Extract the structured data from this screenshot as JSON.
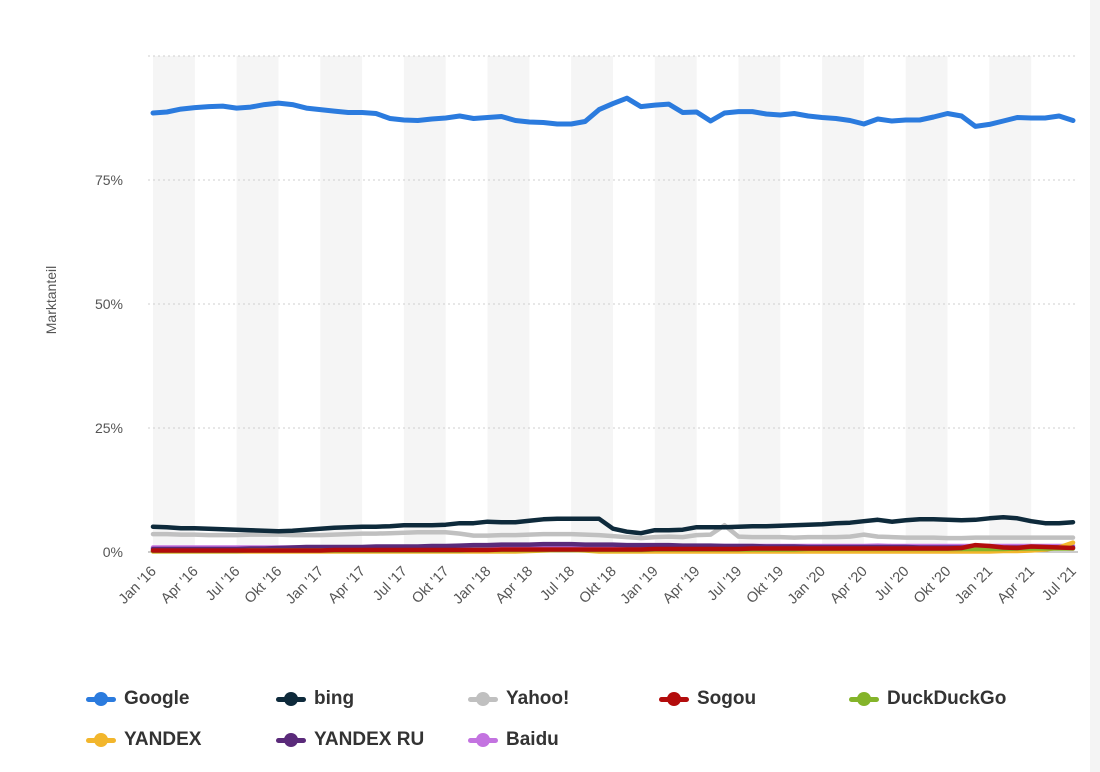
{
  "chart_data": {
    "type": "line",
    "title": "",
    "xlabel": "",
    "ylabel": "Marktanteil",
    "ylim": [
      0,
      100
    ],
    "yticks": [
      "0%",
      "25%",
      "50%",
      "75%"
    ],
    "ytick_values": [
      0,
      25,
      50,
      75
    ],
    "grid": true,
    "legend_position": "bottom",
    "x_tick_labels": [
      "Jan '16",
      "Apr '16",
      "Jul '16",
      "Okt '16",
      "Jan '17",
      "Apr '17",
      "Jul '17",
      "Okt '17",
      "Jan '18",
      "Apr '18",
      "Jul '18",
      "Okt '18",
      "Jan '19",
      "Apr '19",
      "Jul '19",
      "Okt '19",
      "Jan '20",
      "Apr '20",
      "Jul '20",
      "Okt '20",
      "Jan '21",
      "Apr '21",
      "Jul '21"
    ],
    "x": [
      "Jan '16",
      "Feb '16",
      "Mär '16",
      "Apr '16",
      "Mai '16",
      "Jun '16",
      "Jul '16",
      "Aug '16",
      "Sep '16",
      "Okt '16",
      "Nov '16",
      "Dez '16",
      "Jan '17",
      "Feb '17",
      "Mär '17",
      "Apr '17",
      "Mai '17",
      "Jun '17",
      "Jul '17",
      "Aug '17",
      "Sep '17",
      "Okt '17",
      "Nov '17",
      "Dez '17",
      "Jan '18",
      "Feb '18",
      "Mär '18",
      "Apr '18",
      "Mai '18",
      "Jun '18",
      "Jul '18",
      "Aug '18",
      "Sep '18",
      "Okt '18",
      "Nov '18",
      "Dez '18",
      "Jan '19",
      "Feb '19",
      "Mär '19",
      "Apr '19",
      "Mai '19",
      "Jun '19",
      "Jul '19",
      "Aug '19",
      "Sep '19",
      "Okt '19",
      "Nov '19",
      "Dez '19",
      "Jan '20",
      "Feb '20",
      "Mär '20",
      "Apr '20",
      "Mai '20",
      "Jun '20",
      "Jul '20",
      "Aug '20",
      "Sep '20",
      "Okt '20",
      "Nov '20",
      "Dez '20",
      "Jan '21",
      "Feb '21",
      "Mär '21",
      "Apr '21",
      "Mai '21",
      "Jun '21",
      "Jul '21"
    ],
    "series": [
      {
        "name": "Google",
        "color": "#2b7bde",
        "values": [
          88.5,
          88.7,
          89.3,
          89.6,
          89.8,
          89.9,
          89.5,
          89.7,
          90.2,
          90.5,
          90.2,
          89.5,
          89.2,
          88.9,
          88.6,
          88.6,
          88.4,
          87.4,
          87.1,
          87.0,
          87.3,
          87.5,
          87.9,
          87.4,
          87.6,
          87.8,
          87.0,
          86.7,
          86.6,
          86.3,
          86.3,
          86.8,
          89.2,
          90.4,
          91.5,
          89.8,
          90.1,
          90.3,
          88.6,
          88.7,
          86.9,
          88.5,
          88.8,
          88.8,
          88.3,
          88.1,
          88.4,
          87.9,
          87.6,
          87.4,
          87.0,
          86.3,
          87.3,
          86.9,
          87.1,
          87.1,
          87.7,
          88.4,
          87.9,
          85.8,
          86.2,
          86.9,
          87.6,
          87.5,
          87.5,
          87.9,
          87.0
        ]
      },
      {
        "name": "bing",
        "color": "#0e2a3b",
        "values": [
          5.1,
          5.0,
          4.8,
          4.8,
          4.7,
          4.6,
          4.5,
          4.4,
          4.3,
          4.2,
          4.3,
          4.5,
          4.7,
          4.9,
          5.0,
          5.1,
          5.1,
          5.2,
          5.4,
          5.4,
          5.4,
          5.5,
          5.8,
          5.8,
          6.1,
          6.0,
          6.0,
          6.3,
          6.6,
          6.7,
          6.7,
          6.7,
          6.7,
          4.7,
          4.1,
          3.8,
          4.4,
          4.4,
          4.5,
          5.0,
          5.0,
          5.0,
          5.1,
          5.2,
          5.2,
          5.3,
          5.4,
          5.5,
          5.6,
          5.8,
          5.9,
          6.2,
          6.5,
          6.1,
          6.4,
          6.6,
          6.6,
          6.5,
          6.4,
          6.5,
          6.8,
          7.0,
          6.8,
          6.2,
          5.8,
          5.8,
          6.0
        ]
      },
      {
        "name": "Yahoo!",
        "color": "#c0c0c0",
        "values": [
          3.6,
          3.6,
          3.5,
          3.5,
          3.4,
          3.4,
          3.4,
          3.5,
          3.5,
          3.5,
          3.4,
          3.4,
          3.4,
          3.5,
          3.6,
          3.7,
          3.7,
          3.8,
          3.9,
          4.0,
          4.0,
          4.0,
          3.7,
          3.3,
          3.3,
          3.4,
          3.4,
          3.5,
          3.6,
          3.6,
          3.6,
          3.5,
          3.4,
          3.2,
          3.0,
          2.8,
          3.0,
          3.1,
          3.0,
          3.4,
          3.5,
          5.4,
          3.1,
          3.0,
          3.0,
          3.0,
          2.9,
          3.0,
          3.0,
          3.0,
          3.1,
          3.5,
          3.1,
          3.0,
          2.9,
          2.9,
          2.9,
          2.8,
          2.8,
          2.9,
          2.9,
          2.9,
          2.9,
          2.9,
          2.9,
          2.9,
          2.9
        ]
      },
      {
        "name": "Sogou",
        "color": "#b30c0c",
        "values": [
          0.3,
          0.3,
          0.3,
          0.3,
          0.3,
          0.3,
          0.3,
          0.3,
          0.3,
          0.3,
          0.3,
          0.3,
          0.3,
          0.4,
          0.4,
          0.4,
          0.4,
          0.4,
          0.4,
          0.4,
          0.4,
          0.4,
          0.4,
          0.4,
          0.4,
          0.5,
          0.5,
          0.5,
          0.5,
          0.5,
          0.5,
          0.5,
          0.5,
          0.5,
          0.5,
          0.5,
          0.6,
          0.6,
          0.6,
          0.6,
          0.6,
          0.6,
          0.6,
          0.7,
          0.7,
          0.7,
          0.7,
          0.7,
          0.7,
          0.7,
          0.7,
          0.7,
          0.7,
          0.7,
          0.7,
          0.7,
          0.7,
          0.7,
          0.8,
          1.4,
          1.2,
          0.9,
          0.8,
          1.1,
          1.0,
          0.9,
          0.8
        ]
      },
      {
        "name": "DuckDuckGo",
        "color": "#84b42a",
        "values": [
          0.2,
          0.2,
          0.2,
          0.2,
          0.2,
          0.2,
          0.2,
          0.3,
          0.3,
          0.3,
          0.3,
          0.3,
          0.3,
          0.3,
          0.3,
          0.3,
          0.3,
          0.3,
          0.3,
          0.3,
          0.3,
          0.3,
          0.3,
          0.4,
          0.4,
          0.4,
          0.4,
          0.4,
          0.4,
          0.4,
          0.4,
          0.4,
          0.4,
          0.4,
          0.4,
          0.4,
          0.5,
          0.5,
          0.5,
          0.5,
          0.5,
          0.5,
          0.5,
          0.5,
          0.5,
          0.5,
          0.5,
          0.6,
          0.6,
          0.6,
          0.6,
          0.6,
          0.6,
          0.6,
          0.6,
          0.6,
          0.6,
          0.6,
          0.6,
          0.6,
          0.6,
          0.6,
          0.7,
          0.7,
          0.7,
          0.7,
          0.7
        ]
      },
      {
        "name": "YANDEX",
        "color": "#f2b62c",
        "values": [
          0.1,
          0.1,
          0.1,
          0.1,
          0.1,
          0.1,
          0.1,
          0.1,
          0.1,
          0.1,
          0.1,
          0.1,
          0.1,
          0.1,
          0.1,
          0.1,
          0.1,
          0.1,
          0.1,
          0.1,
          0.1,
          0.1,
          0.1,
          0.1,
          0.1,
          0.1,
          0.1,
          0.2,
          0.3,
          0.4,
          0.4,
          0.3,
          0.1,
          0.1,
          0.1,
          0.1,
          0.1,
          0.1,
          0.1,
          0.1,
          0.1,
          0.1,
          0.1,
          0.1,
          0.1,
          0.1,
          0.1,
          0.1,
          0.1,
          0.1,
          0.1,
          0.1,
          0.1,
          0.1,
          0.1,
          0.1,
          0.1,
          0.1,
          0.1,
          0.1,
          0.1,
          0.2,
          0.2,
          0.3,
          0.5,
          0.9,
          1.9
        ]
      },
      {
        "name": "YANDEX RU",
        "color": "#5a2a7a",
        "values": [
          0.6,
          0.6,
          0.6,
          0.6,
          0.6,
          0.6,
          0.6,
          0.7,
          0.7,
          0.8,
          0.9,
          1.0,
          1.0,
          1.0,
          1.0,
          1.0,
          1.1,
          1.1,
          1.1,
          1.1,
          1.2,
          1.2,
          1.3,
          1.4,
          1.4,
          1.5,
          1.5,
          1.5,
          1.6,
          1.6,
          1.6,
          1.5,
          1.5,
          1.5,
          1.4,
          1.4,
          1.4,
          1.4,
          1.3,
          1.3,
          1.3,
          1.2,
          1.2,
          1.2,
          1.1,
          1.1,
          1.1,
          1.0,
          1.0,
          1.0,
          1.0,
          1.0,
          1.0,
          1.0,
          1.0,
          0.9,
          0.9,
          0.9,
          0.9,
          0.9,
          0.9,
          0.9,
          0.9,
          0.9,
          0.9,
          0.9,
          0.9
        ]
      },
      {
        "name": "Baidu",
        "color": "#c373e0",
        "values": [
          0.9,
          0.9,
          0.9,
          0.9,
          0.9,
          0.9,
          0.9,
          0.9,
          0.9,
          0.9,
          0.9,
          0.9,
          0.9,
          0.9,
          0.9,
          0.9,
          0.9,
          0.9,
          1.0,
          1.0,
          1.0,
          1.0,
          1.0,
          1.0,
          1.0,
          1.1,
          1.1,
          1.1,
          1.2,
          1.2,
          1.2,
          1.2,
          1.2,
          1.2,
          1.2,
          1.2,
          1.2,
          1.2,
          1.2,
          1.2,
          1.2,
          1.2,
          1.2,
          1.2,
          1.2,
          1.2,
          1.2,
          1.2,
          1.2,
          1.2,
          1.2,
          1.2,
          1.3,
          1.2,
          1.2,
          1.2,
          1.2,
          1.2,
          1.2,
          1.2,
          1.2,
          1.2,
          1.2,
          1.2,
          1.2,
          1.2,
          1.2
        ]
      }
    ]
  }
}
